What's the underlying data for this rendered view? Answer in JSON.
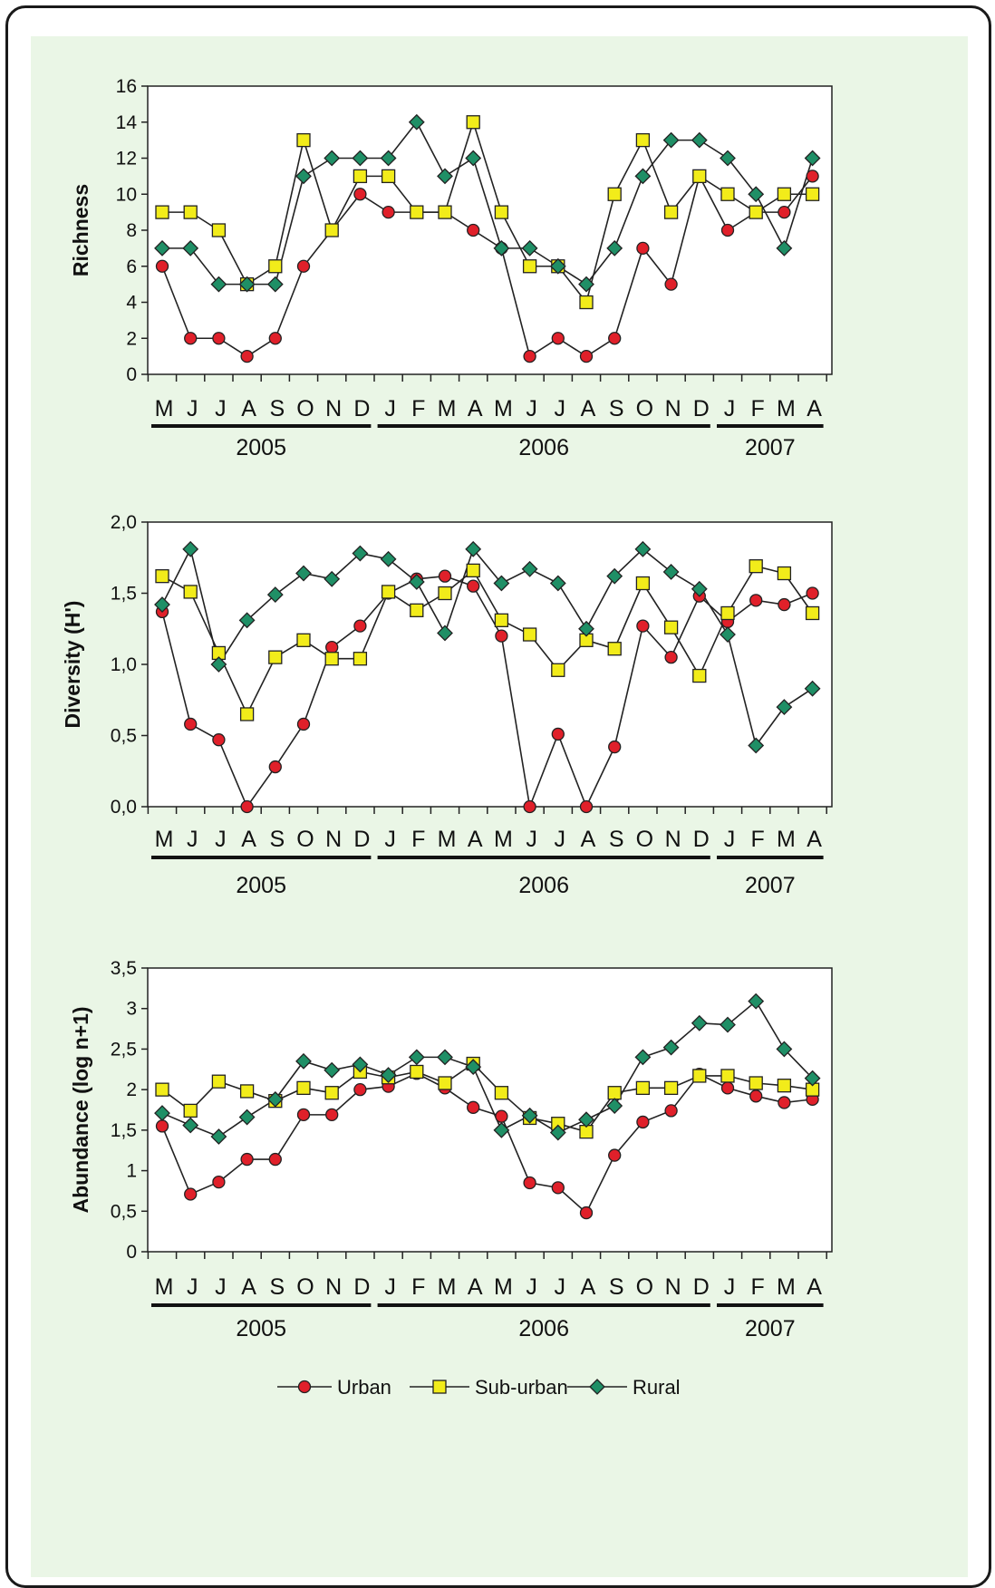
{
  "colors": {
    "urban": "#e0202a",
    "sub_urban": "#f2ec1a",
    "rural": "#1f8f66",
    "panel_bg": "#eaf6e6"
  },
  "legend": [
    {
      "name": "Urban",
      "marker": "circle"
    },
    {
      "name": "Sub-urban",
      "marker": "square"
    },
    {
      "name": "Rural",
      "marker": "diamond"
    }
  ],
  "months": [
    "M",
    "J",
    "J",
    "A",
    "S",
    "O",
    "N",
    "D",
    "J",
    "F",
    "M",
    "A",
    "M",
    "J",
    "J",
    "A",
    "S",
    "O",
    "N",
    "D",
    "J",
    "F",
    "M",
    "A"
  ],
  "years": [
    {
      "label": "2005",
      "start": 0,
      "end": 7
    },
    {
      "label": "2006",
      "start": 8,
      "end": 19
    },
    {
      "label": "2007",
      "start": 20,
      "end": 23
    }
  ],
  "chart_data": [
    {
      "type": "line",
      "ylabel": "Richness",
      "ylim": [
        0,
        16
      ],
      "yticks": [
        "0",
        "2",
        "4",
        "6",
        "8",
        "10",
        "12",
        "14",
        "16"
      ],
      "ytick_values": [
        0,
        2,
        4,
        6,
        8,
        10,
        12,
        14,
        16
      ],
      "series": [
        {
          "name": "Urban",
          "values": [
            6,
            2,
            2,
            1,
            2,
            6,
            8,
            10,
            9,
            9,
            9,
            8,
            7,
            1,
            2,
            1,
            2,
            7,
            5,
            11,
            8,
            9,
            9,
            11
          ]
        },
        {
          "name": "Sub-urban",
          "values": [
            9,
            9,
            8,
            5,
            6,
            13,
            8,
            11,
            11,
            9,
            9,
            14,
            9,
            6,
            6,
            4,
            10,
            13,
            9,
            11,
            10,
            9,
            10,
            10
          ]
        },
        {
          "name": "Rural",
          "values": [
            7,
            7,
            5,
            5,
            5,
            11,
            12,
            12,
            12,
            14,
            11,
            12,
            7,
            7,
            6,
            5,
            7,
            11,
            13,
            13,
            12,
            10,
            7,
            12
          ]
        }
      ]
    },
    {
      "type": "line",
      "ylabel": "Diversity (H')",
      "ylim": [
        0,
        2
      ],
      "yticks": [
        "0,0",
        "0,5",
        "1,0",
        "1,5",
        "2,0"
      ],
      "ytick_values": [
        0,
        0.5,
        1,
        1.5,
        2
      ],
      "series": [
        {
          "name": "Urban",
          "values": [
            1.37,
            0.58,
            0.47,
            0.0,
            0.28,
            0.58,
            1.12,
            1.27,
            1.5,
            1.6,
            1.62,
            1.55,
            1.2,
            0.0,
            0.51,
            0.0,
            0.42,
            1.27,
            1.05,
            1.48,
            1.3,
            1.45,
            1.42,
            1.5
          ]
        },
        {
          "name": "Sub-urban",
          "values": [
            1.62,
            1.51,
            1.08,
            0.65,
            1.05,
            1.17,
            1.04,
            1.04,
            1.51,
            1.38,
            1.5,
            1.66,
            1.31,
            1.21,
            0.96,
            1.17,
            1.11,
            1.57,
            1.26,
            0.92,
            1.36,
            1.69,
            1.64,
            1.36
          ]
        },
        {
          "name": "Rural",
          "values": [
            1.42,
            1.81,
            1.0,
            1.31,
            1.49,
            1.64,
            1.6,
            1.78,
            1.74,
            1.58,
            1.22,
            1.81,
            1.57,
            1.67,
            1.57,
            1.25,
            1.62,
            1.81,
            1.65,
            1.53,
            1.21,
            0.43,
            0.7,
            0.83
          ]
        }
      ]
    },
    {
      "type": "line",
      "ylabel": "Abundance (log n+1)",
      "ylim": [
        0,
        3.5
      ],
      "yticks": [
        "0",
        "0,5",
        "1",
        "1,5",
        "2",
        "2,5",
        "3",
        "3,5"
      ],
      "ytick_values": [
        0,
        0.5,
        1,
        1.5,
        2,
        2.5,
        3,
        3.5
      ],
      "series": [
        {
          "name": "Urban",
          "values": [
            1.55,
            0.71,
            0.86,
            1.14,
            1.14,
            1.69,
            1.69,
            2.0,
            2.04,
            2.2,
            2.02,
            1.78,
            1.67,
            0.85,
            0.79,
            0.48,
            1.19,
            1.6,
            1.74,
            2.19,
            2.02,
            1.92,
            1.84,
            1.88
          ]
        },
        {
          "name": "Sub-urban",
          "values": [
            2.0,
            1.74,
            2.1,
            1.98,
            1.86,
            2.02,
            1.96,
            2.22,
            2.15,
            2.22,
            2.08,
            2.32,
            1.96,
            1.65,
            1.58,
            1.48,
            1.96,
            2.02,
            2.02,
            2.17,
            2.17,
            2.08,
            2.05,
            2.0
          ]
        },
        {
          "name": "Rural",
          "values": [
            1.71,
            1.56,
            1.42,
            1.66,
            1.88,
            2.35,
            2.24,
            2.31,
            2.18,
            2.4,
            2.4,
            2.28,
            1.5,
            1.68,
            1.47,
            1.63,
            1.8,
            2.4,
            2.52,
            2.82,
            2.8,
            3.09,
            2.5,
            2.14
          ]
        }
      ]
    }
  ]
}
